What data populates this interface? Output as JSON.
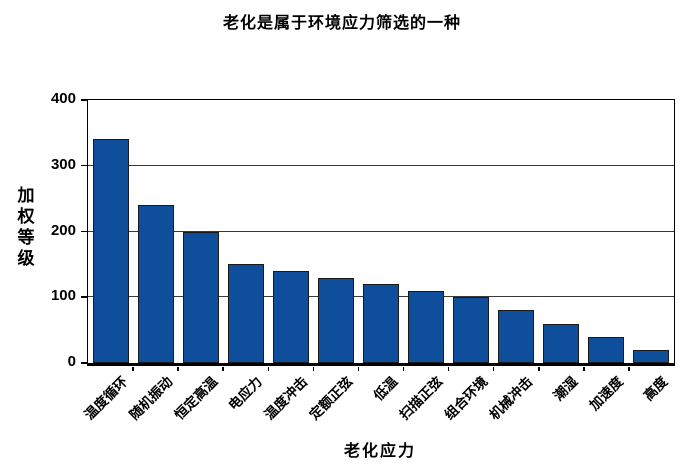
{
  "title": "老化是属于环境应力筛选的一种",
  "chart_data": {
    "type": "bar",
    "title": "老化是属于环境应力筛选的一种",
    "xlabel": "老化应力",
    "ylabel": "加权等级",
    "categories": [
      "温度循环",
      "随机振动",
      "恒定高温",
      "电应力",
      "温度冲击",
      "定额正弦",
      "低温",
      "扫描正弦",
      "组合环境",
      "机械冲击",
      "潮湿",
      "加速度",
      "高度"
    ],
    "values": [
      340,
      240,
      200,
      150,
      140,
      130,
      120,
      110,
      100,
      80,
      60,
      40,
      20
    ],
    "ylim": [
      0,
      400
    ],
    "yticks": [
      0,
      100,
      200,
      300,
      400
    ],
    "grid": true,
    "legend": "none",
    "bar_color": "#0F4E9A",
    "bar_border_color": "#1a1a1a",
    "axis_color": "#000000"
  }
}
